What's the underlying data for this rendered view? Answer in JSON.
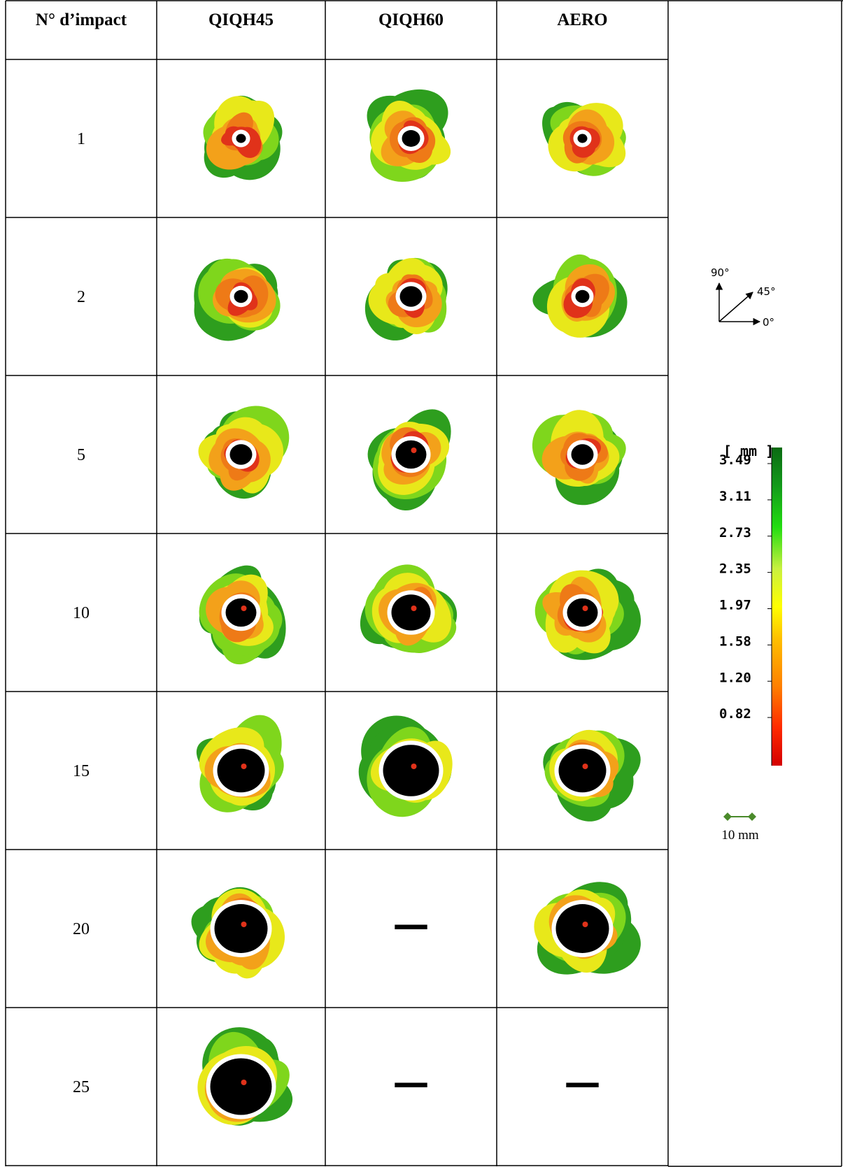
{
  "table": {
    "header": [
      "N° d’impact",
      "QIQH45",
      "QIQH60",
      "AERO"
    ],
    "rows": [
      {
        "impact": "1",
        "cells": [
          null,
          null,
          null
        ]
      },
      {
        "impact": "2",
        "cells": [
          null,
          null,
          null
        ]
      },
      {
        "impact": "5",
        "cells": [
          null,
          null,
          null
        ]
      },
      {
        "impact": "10",
        "cells": [
          null,
          null,
          null
        ]
      },
      {
        "impact": "15",
        "cells": [
          null,
          null,
          null
        ]
      },
      {
        "impact": "20",
        "cells": [
          null,
          "—",
          null
        ]
      },
      {
        "impact": "25",
        "cells": [
          null,
          "—",
          "—"
        ]
      }
    ]
  },
  "compass": {
    "y": "90°",
    "diag": "45°",
    "x": "0°"
  },
  "legend": {
    "unit": "[ mm ]",
    "ticks": [
      "3.49",
      "3.11",
      "2.73",
      "2.35",
      "1.97",
      "1.58",
      "1.20",
      "0.82"
    ]
  },
  "scale_bar": "10 mm"
}
